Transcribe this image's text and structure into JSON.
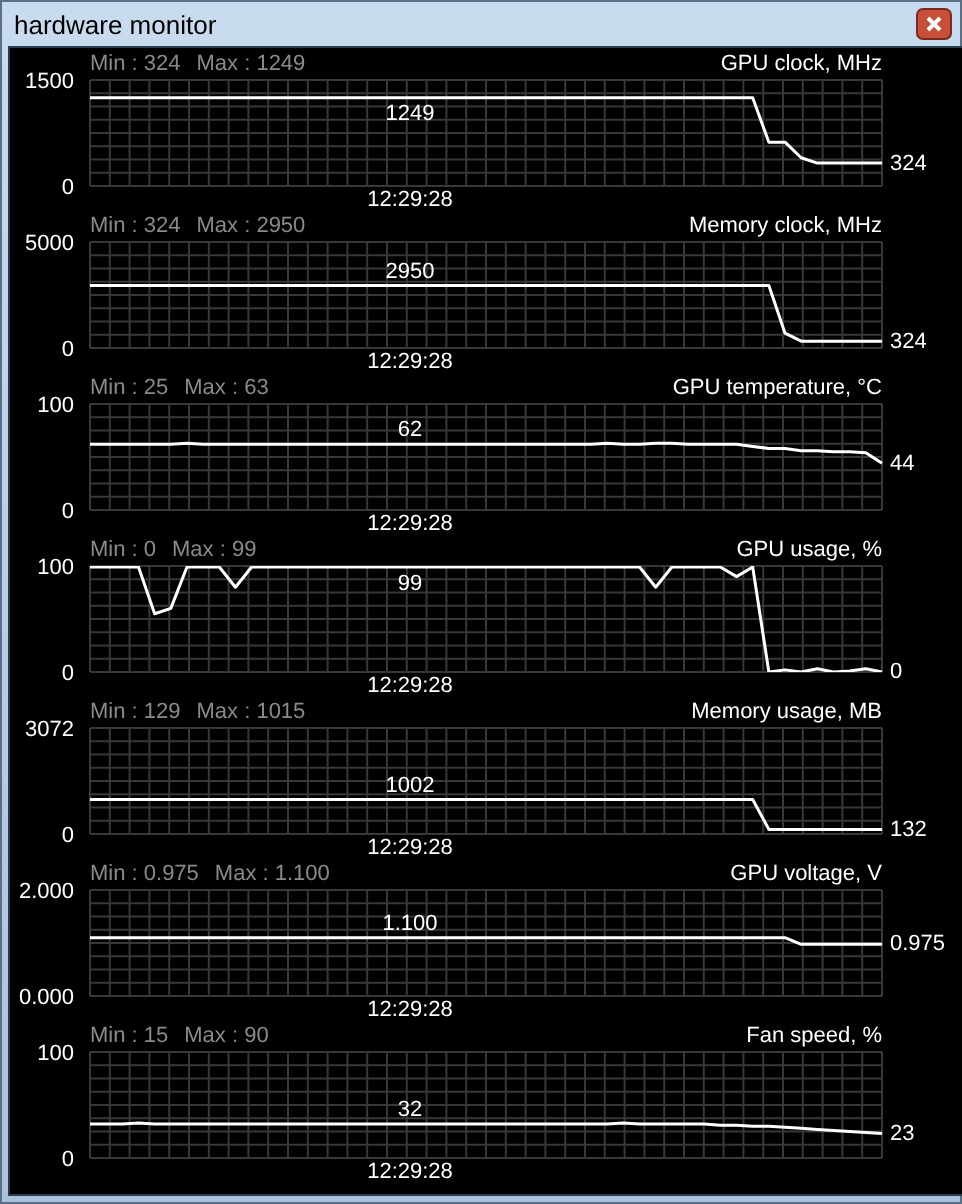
{
  "chart_data": [
    {
      "type": "line",
      "subtitle": "hardware monitor",
      "title": "GPU clock, MHz",
      "categories": [
        null,
        null,
        null,
        null,
        null,
        null,
        null,
        null,
        null,
        null,
        null,
        null,
        null,
        null,
        null,
        null,
        null,
        null,
        null,
        null,
        null,
        null,
        null,
        null,
        null,
        null,
        null,
        null,
        null,
        null,
        null,
        null,
        null,
        null,
        null,
        null,
        null,
        null,
        null,
        null,
        null,
        null,
        null,
        null,
        null,
        null,
        null,
        null,
        null,
        null
      ],
      "series": [
        {
          "color": "#ffffff",
          "values": [
            1249,
            1249,
            1249,
            1249,
            1249,
            1249,
            1249,
            1249,
            1249,
            1249,
            1249,
            1249,
            1249,
            1249,
            1249,
            1249,
            1249,
            1249,
            1249,
            1249,
            1249,
            1249,
            1249,
            1249,
            1249,
            1249,
            1249,
            1249,
            1249,
            1249,
            1249,
            1249,
            1249,
            1249,
            1249,
            1249,
            1249,
            1249,
            1249,
            1249,
            1249,
            1249,
            620,
            620,
            400,
            324,
            324,
            324,
            324,
            324
          ]
        }
      ],
      "ylim": [
        0,
        1500
      ],
      "yticks": [
        0,
        1500
      ],
      "grid": true,
      "marker": "none",
      "annotations": [
        "Min : 324",
        "Max : 1249",
        "1249",
        "324",
        "12:29:28"
      ]
    },
    {
      "type": "line",
      "title": "Memory clock, MHz",
      "categories": [
        null,
        null,
        null,
        null,
        null,
        null,
        null,
        null,
        null,
        null,
        null,
        null,
        null,
        null,
        null,
        null,
        null,
        null,
        null,
        null,
        null,
        null,
        null,
        null,
        null,
        null,
        null,
        null,
        null,
        null,
        null,
        null,
        null,
        null,
        null,
        null,
        null,
        null,
        null,
        null,
        null,
        null,
        null,
        null,
        null,
        null,
        null,
        null,
        null,
        null
      ],
      "series": [
        {
          "color": "#ffffff",
          "values": [
            2950,
            2950,
            2950,
            2950,
            2950,
            2950,
            2950,
            2950,
            2950,
            2950,
            2950,
            2950,
            2950,
            2950,
            2950,
            2950,
            2950,
            2950,
            2950,
            2950,
            2950,
            2950,
            2950,
            2950,
            2950,
            2950,
            2950,
            2950,
            2950,
            2950,
            2950,
            2950,
            2950,
            2950,
            2950,
            2950,
            2950,
            2950,
            2950,
            2950,
            2950,
            2950,
            2950,
            700,
            324,
            324,
            324,
            324,
            324,
            324
          ]
        }
      ],
      "ylim": [
        0,
        5000
      ],
      "yticks": [
        0,
        5000
      ],
      "grid": true,
      "marker": "none",
      "annotations": [
        "Min : 324",
        "Max : 2950",
        "2950",
        "324",
        "12:29:28"
      ]
    },
    {
      "type": "line",
      "title": "GPU temperature, °C",
      "categories": [
        null,
        null,
        null,
        null,
        null,
        null,
        null,
        null,
        null,
        null,
        null,
        null,
        null,
        null,
        null,
        null,
        null,
        null,
        null,
        null,
        null,
        null,
        null,
        null,
        null,
        null,
        null,
        null,
        null,
        null,
        null,
        null,
        null,
        null,
        null,
        null,
        null,
        null,
        null,
        null,
        null,
        null,
        null,
        null,
        null,
        null,
        null,
        null,
        null,
        null
      ],
      "series": [
        {
          "color": "#ffffff",
          "values": [
            62,
            62,
            62,
            62,
            62,
            62,
            63,
            62,
            62,
            62,
            62,
            62,
            62,
            62,
            62,
            62,
            62,
            62,
            62,
            62,
            62,
            62,
            62,
            62,
            62,
            62,
            62,
            62,
            62,
            62,
            62,
            62,
            63,
            62,
            62,
            63,
            63,
            62,
            62,
            62,
            62,
            60,
            58,
            58,
            56,
            56,
            55,
            55,
            54,
            44
          ]
        }
      ],
      "ylim": [
        0,
        100
      ],
      "yticks": [
        0,
        100
      ],
      "grid": true,
      "marker": "none",
      "annotations": [
        "Min : 25",
        "Max : 63",
        "62",
        "44",
        "12:29:28"
      ]
    },
    {
      "type": "line",
      "title": "GPU usage, %",
      "categories": [
        null,
        null,
        null,
        null,
        null,
        null,
        null,
        null,
        null,
        null,
        null,
        null,
        null,
        null,
        null,
        null,
        null,
        null,
        null,
        null,
        null,
        null,
        null,
        null,
        null,
        null,
        null,
        null,
        null,
        null,
        null,
        null,
        null,
        null,
        null,
        null,
        null,
        null,
        null,
        null,
        null,
        null,
        null,
        null,
        null,
        null,
        null,
        null,
        null,
        null
      ],
      "series": [
        {
          "color": "#ffffff",
          "values": [
            99,
            99,
            99,
            99,
            55,
            60,
            99,
            99,
            99,
            80,
            99,
            99,
            99,
            99,
            99,
            99,
            99,
            99,
            99,
            99,
            99,
            99,
            99,
            99,
            99,
            99,
            99,
            99,
            99,
            99,
            99,
            99,
            99,
            99,
            99,
            80,
            99,
            99,
            99,
            99,
            90,
            99,
            0,
            2,
            0,
            3,
            0,
            1,
            3,
            0
          ]
        }
      ],
      "ylim": [
        0,
        100
      ],
      "yticks": [
        0,
        100
      ],
      "grid": true,
      "marker": "none",
      "annotations": [
        "Min : 0",
        "Max : 99",
        "99",
        "0",
        "12:29:28"
      ]
    },
    {
      "type": "line",
      "title": "Memory usage, MB",
      "categories": [
        null,
        null,
        null,
        null,
        null,
        null,
        null,
        null,
        null,
        null,
        null,
        null,
        null,
        null,
        null,
        null,
        null,
        null,
        null,
        null,
        null,
        null,
        null,
        null,
        null,
        null,
        null,
        null,
        null,
        null,
        null,
        null,
        null,
        null,
        null,
        null,
        null,
        null,
        null,
        null,
        null,
        null,
        null,
        null,
        null,
        null,
        null,
        null,
        null,
        null
      ],
      "series": [
        {
          "color": "#ffffff",
          "values": [
            1002,
            1002,
            1002,
            1002,
            1002,
            1002,
            1002,
            1002,
            1002,
            1002,
            1002,
            1002,
            1002,
            1002,
            1002,
            1002,
            1002,
            1002,
            1002,
            1002,
            1002,
            1002,
            1002,
            1002,
            1002,
            1002,
            1002,
            1002,
            1002,
            1002,
            1002,
            1002,
            1002,
            1002,
            1002,
            1002,
            1002,
            1002,
            1002,
            1002,
            1002,
            1002,
            132,
            132,
            132,
            132,
            132,
            132,
            132,
            132
          ]
        }
      ],
      "ylim": [
        0,
        3072
      ],
      "yticks": [
        0,
        3072
      ],
      "grid": true,
      "marker": "none",
      "annotations": [
        "Min : 129",
        "Max : 1015",
        "1002",
        "132",
        "12:29:28"
      ]
    },
    {
      "type": "line",
      "title": "GPU voltage, V",
      "categories": [
        null,
        null,
        null,
        null,
        null,
        null,
        null,
        null,
        null,
        null,
        null,
        null,
        null,
        null,
        null,
        null,
        null,
        null,
        null,
        null,
        null,
        null,
        null,
        null,
        null,
        null,
        null,
        null,
        null,
        null,
        null,
        null,
        null,
        null,
        null,
        null,
        null,
        null,
        null,
        null,
        null,
        null,
        null,
        null,
        null,
        null,
        null,
        null,
        null,
        null
      ],
      "series": [
        {
          "color": "#ffffff",
          "values": [
            1.1,
            1.1,
            1.1,
            1.1,
            1.1,
            1.1,
            1.1,
            1.1,
            1.1,
            1.1,
            1.1,
            1.1,
            1.1,
            1.1,
            1.1,
            1.1,
            1.1,
            1.1,
            1.1,
            1.1,
            1.1,
            1.1,
            1.1,
            1.1,
            1.1,
            1.1,
            1.1,
            1.1,
            1.1,
            1.1,
            1.1,
            1.1,
            1.1,
            1.1,
            1.1,
            1.1,
            1.1,
            1.1,
            1.1,
            1.1,
            1.1,
            1.1,
            1.1,
            1.1,
            0.975,
            0.975,
            0.975,
            0.975,
            0.975,
            0.975
          ]
        }
      ],
      "ylim": [
        0,
        2
      ],
      "yticks": [
        {
          "value": 0,
          "label": "0.000"
        },
        {
          "value": 2,
          "label": "2.000"
        }
      ],
      "grid": true,
      "marker": "none",
      "annotations": [
        "Min : 0.975",
        "Max : 1.100",
        "1.100",
        "0.975",
        "12:29:28"
      ]
    },
    {
      "type": "line",
      "title": "Fan speed, %",
      "categories": [
        null,
        null,
        null,
        null,
        null,
        null,
        null,
        null,
        null,
        null,
        null,
        null,
        null,
        null,
        null,
        null,
        null,
        null,
        null,
        null,
        null,
        null,
        null,
        null,
        null,
        null,
        null,
        null,
        null,
        null,
        null,
        null,
        null,
        null,
        null,
        null,
        null,
        null,
        null,
        null,
        null,
        null,
        null,
        null,
        null,
        null,
        null,
        null,
        null,
        null
      ],
      "series": [
        {
          "color": "#ffffff",
          "values": [
            32,
            32,
            32,
            33,
            32,
            32,
            32,
            32,
            32,
            32,
            32,
            32,
            32,
            32,
            32,
            32,
            32,
            32,
            32,
            32,
            32,
            32,
            32,
            32,
            32,
            32,
            32,
            32,
            32,
            32,
            32,
            32,
            32,
            33,
            32,
            32,
            32,
            32,
            32,
            31,
            31,
            30,
            30,
            29,
            28,
            27,
            26,
            25,
            24,
            23
          ]
        }
      ],
      "ylim": [
        0,
        100
      ],
      "yticks": [
        0,
        100
      ],
      "grid": true,
      "marker": "none",
      "annotations": [
        "Min : 15",
        "Max : 90",
        "32",
        "23",
        "12:29:28"
      ]
    }
  ]
}
